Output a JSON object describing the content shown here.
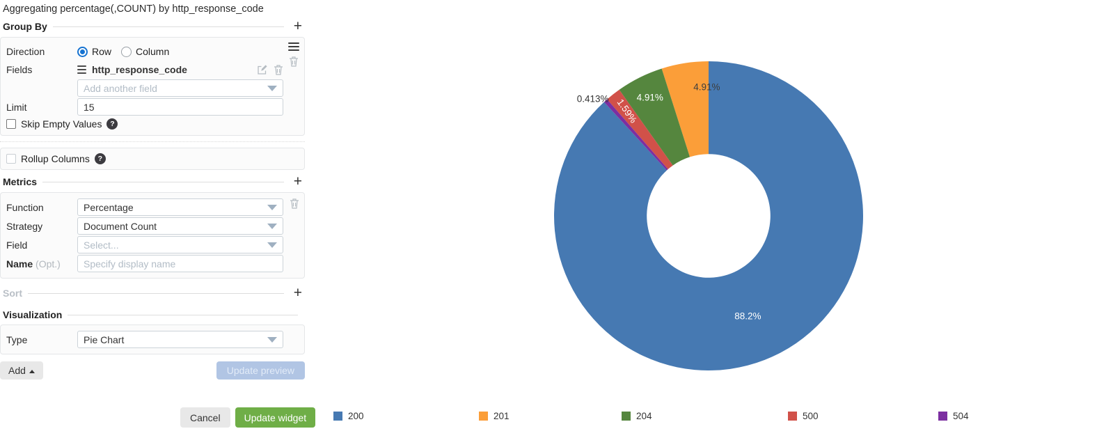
{
  "header": {
    "title": "Aggregating percentage(,COUNT) by http_response_code"
  },
  "group_by": {
    "label": "Group By",
    "add_button": "+",
    "direction_label": "Direction",
    "direction_options": [
      {
        "label": "Row",
        "selected": true
      },
      {
        "label": "Column",
        "selected": false
      }
    ],
    "fields_label": "Fields",
    "field_value": "http_response_code",
    "add_field_placeholder": "Add another field",
    "limit_label": "Limit",
    "limit_value": "15",
    "skip_empty_label": "Skip Empty Values"
  },
  "rollup": {
    "label": "Rollup Columns"
  },
  "metrics": {
    "label": "Metrics",
    "add_button": "+",
    "function_label": "Function",
    "function_value": "Percentage",
    "strategy_label": "Strategy",
    "strategy_value": "Document Count",
    "field_label": "Field",
    "field_placeholder": "Select...",
    "name_label": "Name",
    "name_opt": "(Opt.)",
    "name_placeholder": "Specify display name"
  },
  "sort": {
    "label": "Sort",
    "add_button": "+"
  },
  "visualization": {
    "label": "Visualization",
    "type_label": "Type",
    "type_value": "Pie Chart"
  },
  "footer": {
    "add_button": "Add",
    "update_preview_button": "Update preview",
    "cancel_button": "Cancel",
    "update_widget_button": "Update widget"
  },
  "icons": {
    "help": "?"
  },
  "chart_data": {
    "type": "pie",
    "title": "",
    "labels": [
      "200",
      "201",
      "204",
      "500",
      "504"
    ],
    "values": [
      88.2,
      4.91,
      4.91,
      1.59,
      0.413
    ],
    "display_labels": [
      "88.2%",
      "4.91%",
      "4.91%",
      "1.59%",
      "0.413%"
    ],
    "colors": [
      "#4679b2",
      "#fb9e39",
      "#55863e",
      "#d15149",
      "#7c2fa1"
    ],
    "hole": 0.4,
    "legend_position": "bottom"
  }
}
